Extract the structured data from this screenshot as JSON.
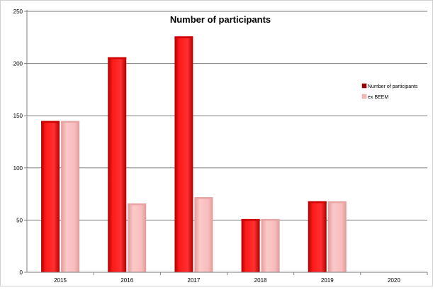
{
  "chart_data": {
    "type": "bar",
    "title": "Number of participants",
    "xlabel": "",
    "ylabel": "",
    "categories": [
      "2015",
      "2016",
      "2017",
      "2018",
      "2019",
      "2020"
    ],
    "series": [
      {
        "name": "Number of participants",
        "values": [
          145,
          206,
          226,
          51,
          68,
          0
        ],
        "color": "#ff1a1a"
      },
      {
        "name": "ex BEEM",
        "values": [
          145,
          66,
          72,
          51,
          68,
          0
        ],
        "color": "#f7b7b7"
      }
    ],
    "yticks": [
      0,
      50,
      100,
      150,
      200,
      250
    ],
    "ylim": [
      0,
      250
    ],
    "grid": true,
    "legend_position": "right"
  }
}
